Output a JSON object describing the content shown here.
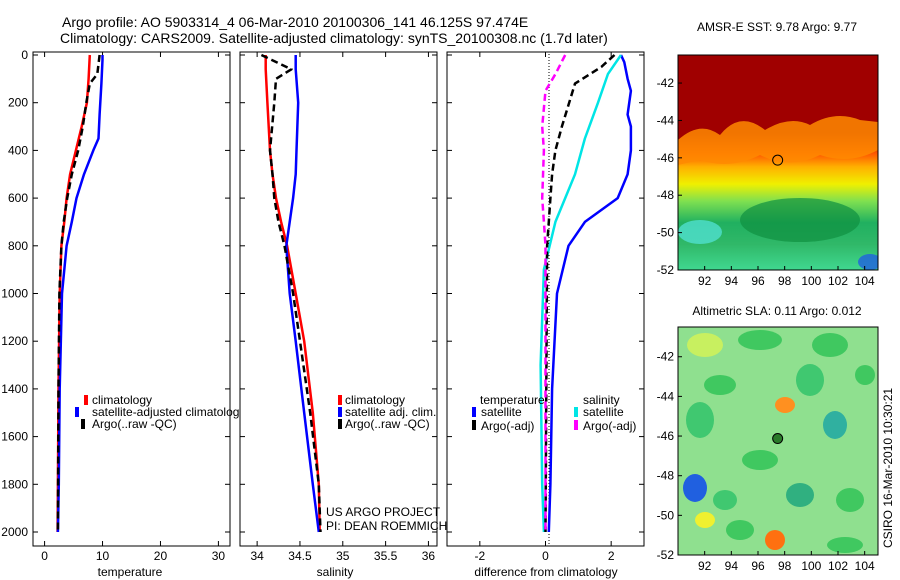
{
  "figure": {
    "title_line1": "Argo profile: AO 5903314_4 06-Mar-2010 20100306_141 46.125S 97.474E",
    "title_line2": "Climatology: CARS2009. Satellite-adjusted climatology: synTS_20100308.nc (1.7d later)",
    "credit_line1": "US ARGO PROJECT",
    "credit_line2": "PI: DEAN ROEMMICH",
    "vertical_stamp": "CSIRO 16-Mar-2010 10:30:21"
  },
  "colors": {
    "climatology": "#ff0000",
    "satellite": "#0000ff",
    "argo": "#000000",
    "sal_satellite": "#00e5e5",
    "argo_adj_sal": "#ff00ff",
    "sst_warm": "#a00000",
    "sla_bg": "#8fe08f"
  },
  "chart_data": [
    {
      "type": "line",
      "id": "temperature",
      "xlabel": "temperature",
      "xlim": [
        -2,
        32
      ],
      "ylim": [
        2000,
        0
      ],
      "yticks": [
        0,
        200,
        400,
        600,
        800,
        1000,
        1200,
        1400,
        1600,
        1800,
        2000
      ],
      "xticks": [
        0,
        10,
        20,
        30
      ],
      "legend": [
        "climatology",
        "satellite-adjusted climatology",
        "Argo(..raw -QC)"
      ],
      "series": [
        {
          "name": "climatology",
          "color": "#ff0000",
          "dash": "solid",
          "x": [
            7.8,
            7.6,
            7.3,
            6.4,
            5.4,
            4.4,
            3.8,
            3.4,
            2.9,
            2.6,
            2.4,
            2.3,
            2.25
          ],
          "y": [
            0,
            100,
            200,
            300,
            400,
            500,
            600,
            700,
            800,
            1000,
            1400,
            1800,
            2000
          ]
        },
        {
          "name": "satellite-adjusted climatology",
          "color": "#0000ff",
          "dash": "solid",
          "x": [
            10.0,
            10.0,
            9.8,
            9.5,
            9.3,
            8.4,
            6.8,
            5.5,
            4.7,
            3.8,
            3.0,
            2.6,
            2.45,
            2.3
          ],
          "y": [
            0,
            20,
            120,
            250,
            350,
            400,
            500,
            600,
            700,
            800,
            1000,
            1400,
            1800,
            2000
          ]
        },
        {
          "name": "Argo(..raw -QC)",
          "color": "#000000",
          "dash": "dashed",
          "x": [
            9.5,
            9.1,
            7.8,
            7.2,
            6.6,
            5.8,
            4.7,
            3.9,
            3.3,
            2.9,
            2.55,
            2.4,
            2.3
          ],
          "y": [
            0,
            80,
            120,
            200,
            300,
            400,
            500,
            600,
            700,
            800,
            1000,
            1400,
            2000
          ]
        }
      ]
    },
    {
      "type": "line",
      "id": "salinity",
      "xlabel": "salinity",
      "xlim": [
        33.8,
        36.1
      ],
      "ylim": [
        2000,
        0
      ],
      "xticks": [
        34,
        34.5,
        35,
        35.5,
        36
      ],
      "legend": [
        "climatology",
        "satellite adj. clim.",
        "Argo(..raw -QC)"
      ],
      "series": [
        {
          "name": "climatology",
          "color": "#ff0000",
          "dash": "solid",
          "x": [
            34.1,
            34.1,
            34.12,
            34.15,
            34.18,
            34.22,
            34.28,
            34.35,
            34.45,
            34.55,
            34.65,
            34.72,
            34.73
          ],
          "y": [
            0,
            60,
            200,
            400,
            500,
            600,
            700,
            800,
            1000,
            1200,
            1500,
            1800,
            2000
          ]
        },
        {
          "name": "satellite adj. clim.",
          "color": "#0000ff",
          "dash": "solid",
          "x": [
            34.45,
            34.45,
            34.48,
            34.46,
            34.45,
            34.42,
            34.38,
            34.34,
            34.38,
            34.45,
            34.55,
            34.65,
            34.72
          ],
          "y": [
            0,
            60,
            200,
            400,
            500,
            600,
            700,
            800,
            1000,
            1200,
            1500,
            1800,
            2000
          ]
        },
        {
          "name": "Argo(..raw -QC)",
          "color": "#000000",
          "dash": "dashed",
          "x": [
            34.05,
            34.4,
            34.22,
            34.2,
            34.15,
            34.18,
            34.2,
            34.25,
            34.32,
            34.42,
            34.5,
            34.62,
            34.72,
            34.74
          ],
          "y": [
            0,
            60,
            100,
            200,
            400,
            500,
            600,
            700,
            800,
            1000,
            1200,
            1500,
            1800,
            2000
          ]
        }
      ]
    },
    {
      "type": "line",
      "id": "difference",
      "xlabel": "difference from climatology",
      "xlim": [
        -3,
        3
      ],
      "ylim": [
        2000,
        0
      ],
      "xticks": [
        -2,
        0,
        2
      ],
      "legend_groups": {
        "temperature": [
          "satellite",
          "Argo(-adj)"
        ],
        "salinity": [
          "satellite",
          "Argo(-adj)"
        ]
      },
      "legend_titles": [
        "temperature",
        "salinity"
      ],
      "series": [
        {
          "name": "temperature satellite",
          "color": "#0000ff",
          "dash": "solid",
          "x": [
            2.3,
            2.4,
            2.5,
            2.6,
            2.5,
            2.6,
            2.6,
            2.5,
            2.2,
            1.2,
            0.7,
            0.35,
            0.2,
            0.15,
            0.1
          ],
          "y": [
            0,
            30,
            100,
            150,
            250,
            300,
            400,
            500,
            600,
            700,
            800,
            1000,
            1400,
            1800,
            2000
          ]
        },
        {
          "name": "salinity satellite",
          "color": "#00e5e5",
          "dash": "solid",
          "x": [
            2.3,
            1.9,
            1.6,
            1.2,
            0.9,
            0.6,
            0.3,
            -0.05,
            -0.15,
            -0.1,
            -0.05
          ],
          "y": [
            0,
            80,
            200,
            350,
            500,
            600,
            700,
            900,
            1300,
            1800,
            2000
          ]
        },
        {
          "name": "temperature Argo(-adj)",
          "color": "#000000",
          "dash": "dashed",
          "x": [
            2.1,
            1.7,
            0.9,
            0.5,
            0.3,
            0.2,
            0.15,
            0.1,
            0.05,
            0.0
          ],
          "y": [
            0,
            50,
            120,
            300,
            400,
            500,
            600,
            700,
            800,
            2000
          ]
        },
        {
          "name": "salinity Argo(-adj)",
          "color": "#ff00ff",
          "dash": "dashed",
          "x": [
            0.6,
            0.3,
            0.0,
            -0.1,
            -0.05,
            -0.1,
            -0.05,
            0.0,
            0.0
          ],
          "y": [
            0,
            80,
            150,
            300,
            400,
            600,
            700,
            800,
            2000
          ]
        }
      ]
    },
    {
      "type": "heatmap",
      "id": "sst",
      "title": "AMSR-E SST: 9.78 Argo: 9.77",
      "xlim": [
        90,
        105
      ],
      "ylim": [
        -52,
        -40.5
      ],
      "xticks": [
        92,
        94,
        96,
        98,
        100,
        102,
        104
      ],
      "yticks": [
        -42,
        -44,
        -46,
        -48,
        -50,
        -52
      ],
      "marker": {
        "lon": 97.474,
        "lat": -46.125
      }
    },
    {
      "type": "heatmap",
      "id": "sla",
      "title": "Altimetric SLA: 0.11 Argo: 0.012",
      "xlim": [
        90,
        105
      ],
      "ylim": [
        -52,
        -40.5
      ],
      "xticks": [
        92,
        94,
        96,
        98,
        100,
        102,
        104
      ],
      "yticks": [
        -42,
        -44,
        -46,
        -48,
        -50,
        -52
      ],
      "marker": {
        "lon": 97.474,
        "lat": -46.125
      }
    }
  ]
}
